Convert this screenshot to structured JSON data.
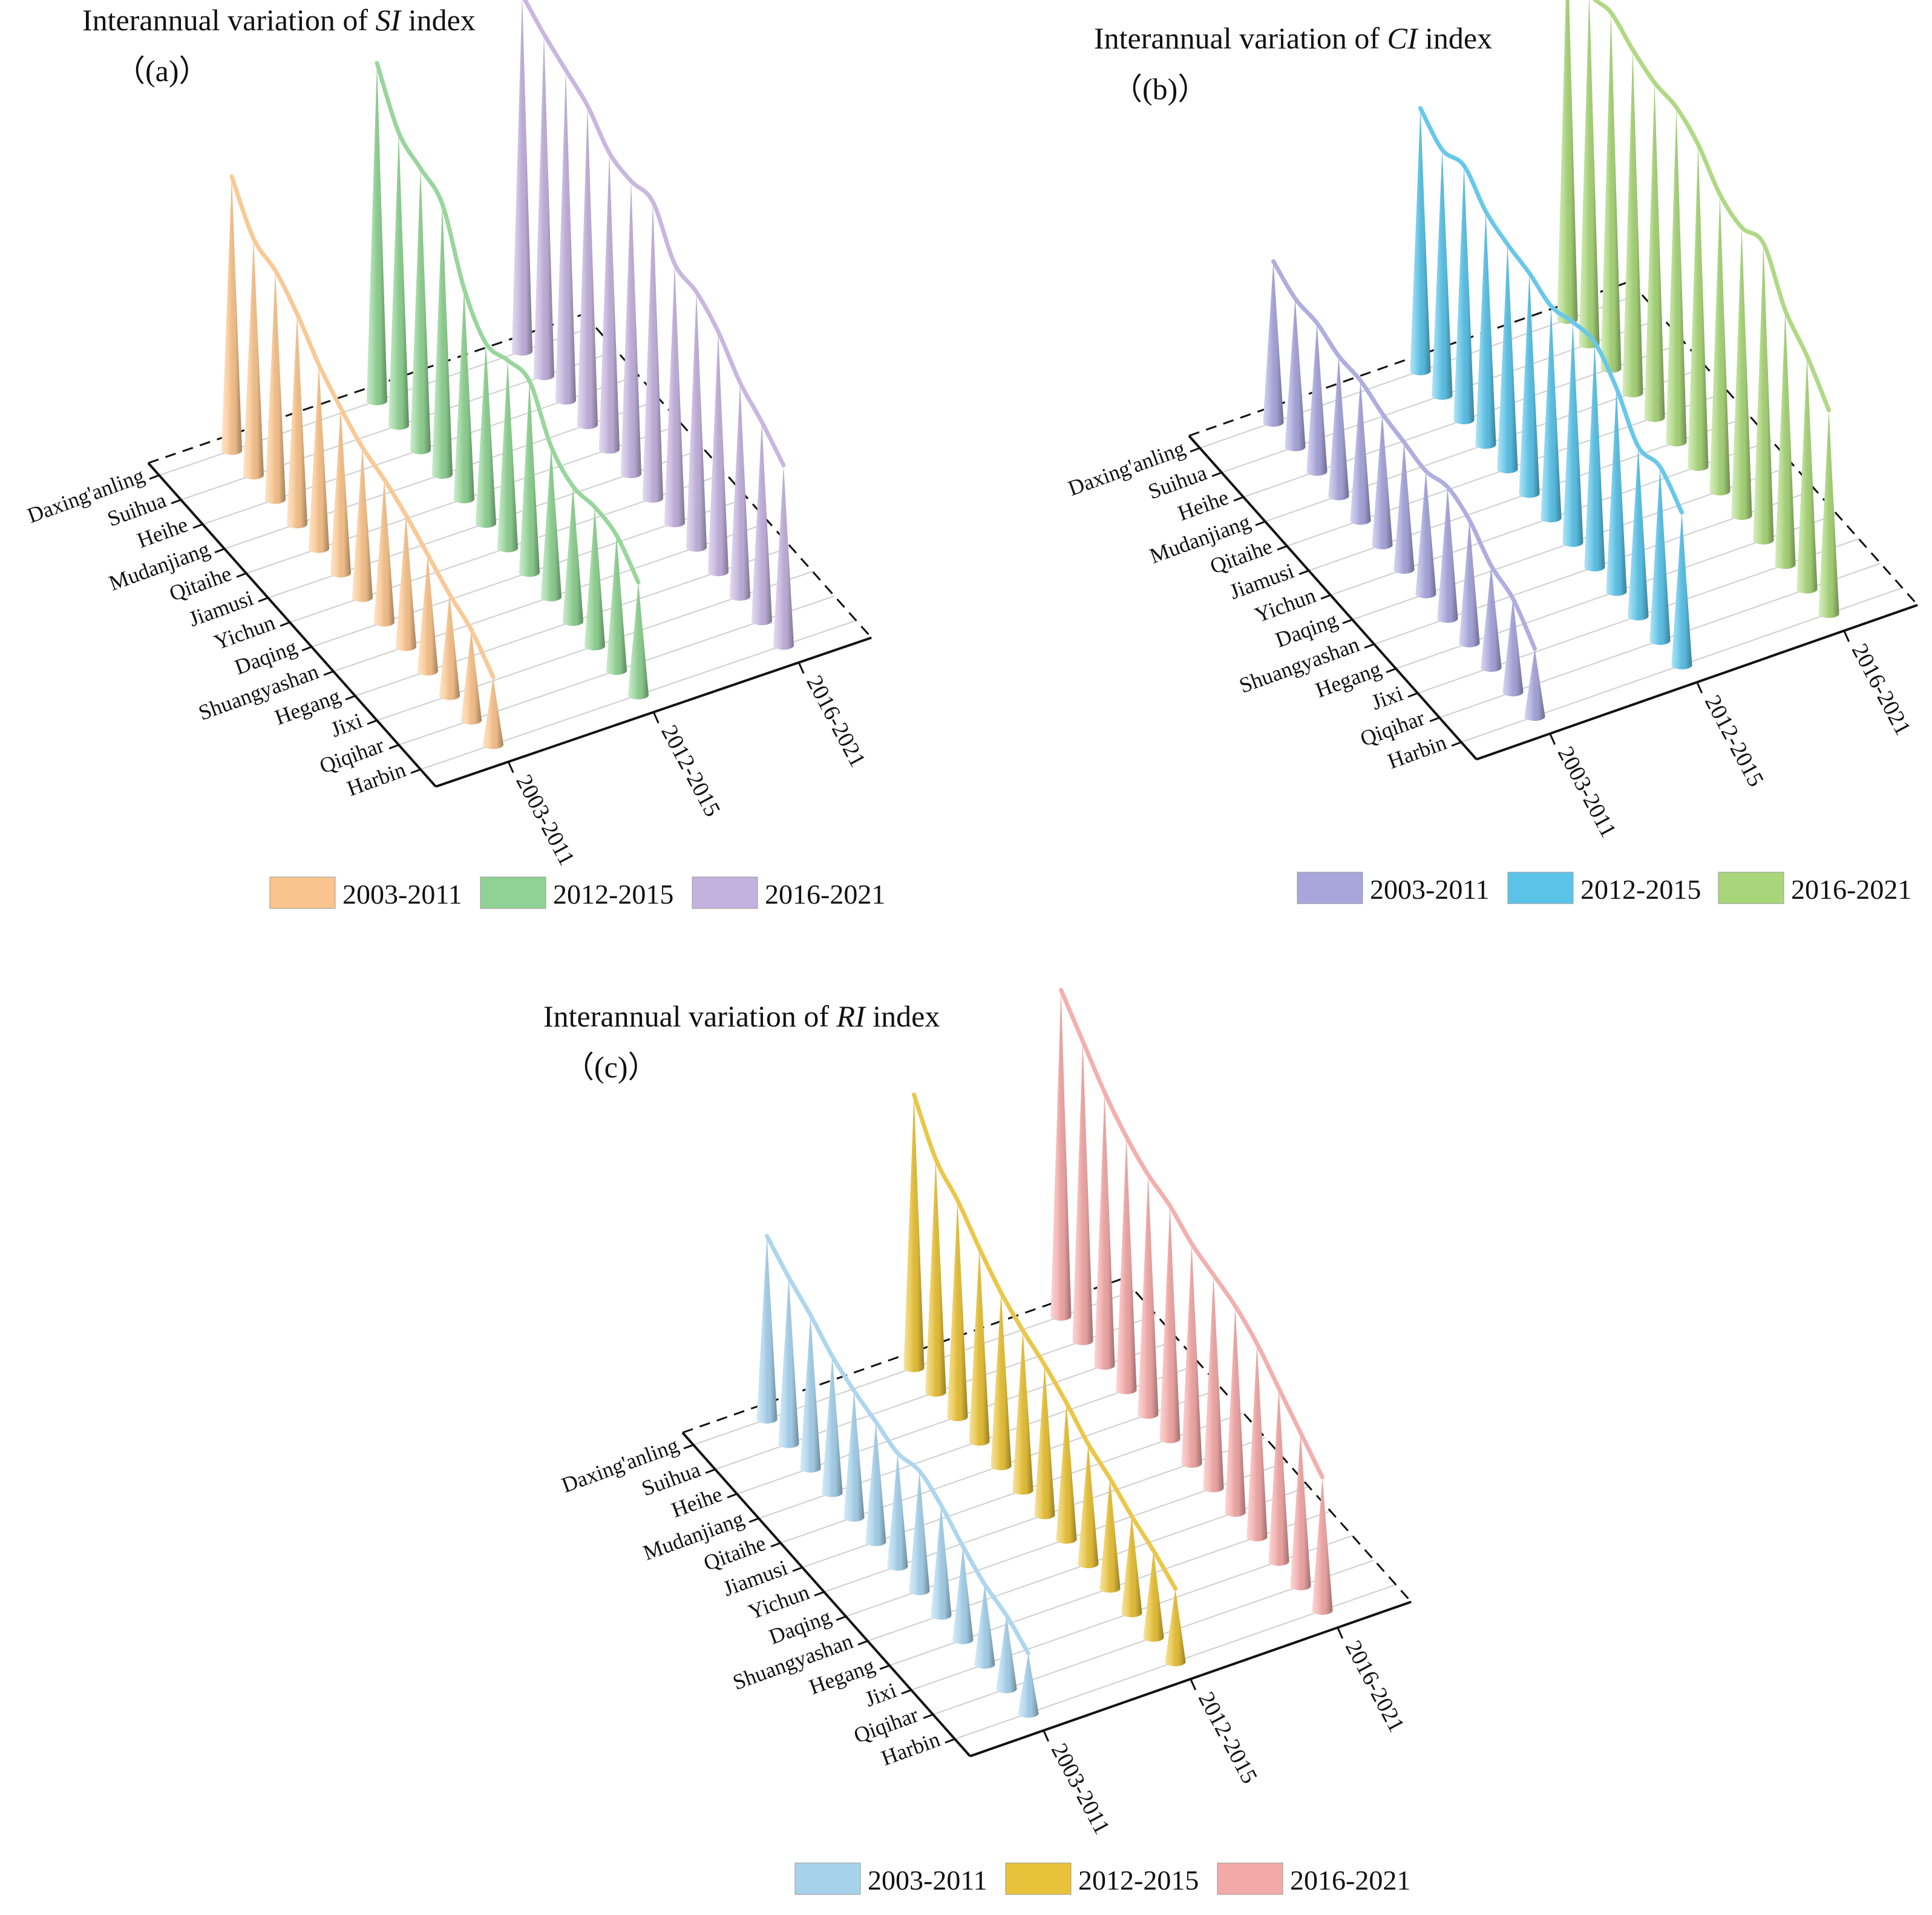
{
  "regions": [
    "Daxing'anling",
    "Suihua",
    "Heihe",
    "Mudanjiang",
    "Qitaihe",
    "Jiamusi",
    "Yichun",
    "Daqing",
    "Shuangyashan",
    "Hegang",
    "Jixi",
    "Qiqihar",
    "Harbin"
  ],
  "groups": [
    "2003-2011",
    "2012-2015",
    "2016-2021"
  ],
  "chart_data": [
    {
      "type": "3d-cone",
      "panel": "(a)",
      "title": {
        "pre": "Interannual variation of ",
        "em": "SI",
        "post": " index"
      },
      "series": [
        {
          "name": "2003-2011",
          "color": "#f9c48d",
          "values": [
            0.73,
            0.63,
            0.61,
            0.56,
            0.49,
            0.44,
            0.4,
            0.38,
            0.35,
            0.31,
            0.27,
            0.24,
            0.18
          ]
        },
        {
          "name": "2012-2015",
          "color": "#90d293",
          "values": [
            0.9,
            0.78,
            0.75,
            0.72,
            0.56,
            0.48,
            0.5,
            0.51,
            0.4,
            0.36,
            0.37,
            0.36,
            0.3
          ]
        },
        {
          "name": "2016-2021",
          "color": "#c3b2dd",
          "values": [
            0.95,
            0.91,
            0.88,
            0.85,
            0.79,
            0.78,
            0.79,
            0.69,
            0.68,
            0.64,
            0.57,
            0.53,
            0.48
          ]
        }
      ]
    },
    {
      "type": "3d-cone",
      "panel": "(b)",
      "title": {
        "pre": "Interannual variation of ",
        "em": "CI",
        "post": " index"
      },
      "series": [
        {
          "name": "2003-2011",
          "color": "#a9a6dc",
          "values": [
            0.38,
            0.35,
            0.35,
            0.33,
            0.33,
            0.31,
            0.3,
            0.29,
            0.31,
            0.29,
            0.24,
            0.22,
            0.16
          ]
        },
        {
          "name": "2012-2015",
          "color": "#5cc3e8",
          "values": [
            0.62,
            0.58,
            0.6,
            0.55,
            0.53,
            0.52,
            0.5,
            0.52,
            0.53,
            0.48,
            0.4,
            0.41,
            0.36
          ]
        },
        {
          "name": "2016-2021",
          "color": "#a9d67a",
          "values": [
            0.9,
            0.83,
            0.84,
            0.81,
            0.79,
            0.79,
            0.76,
            0.7,
            0.68,
            0.7,
            0.6,
            0.55,
            0.48
          ]
        }
      ]
    },
    {
      "type": "3d-cone",
      "panel": "(c)",
      "title": {
        "pre": "Interannual variation of ",
        "em": "RI",
        "post": " index"
      },
      "series": [
        {
          "name": "2003-2011",
          "color": "#a7d2ec",
          "values": [
            0.55,
            0.5,
            0.46,
            0.41,
            0.38,
            0.36,
            0.34,
            0.36,
            0.33,
            0.28,
            0.24,
            0.22,
            0.18
          ]
        },
        {
          "name": "2012-2015",
          "color": "#e8c23a",
          "values": [
            0.82,
            0.7,
            0.65,
            0.58,
            0.52,
            0.48,
            0.45,
            0.41,
            0.36,
            0.33,
            0.29,
            0.26,
            0.22
          ]
        },
        {
          "name": "2016-2021",
          "color": "#f2a9a7",
          "values": [
            0.98,
            0.9,
            0.82,
            0.76,
            0.72,
            0.7,
            0.66,
            0.64,
            0.62,
            0.58,
            0.52,
            0.46,
            0.4
          ]
        }
      ]
    }
  ]
}
